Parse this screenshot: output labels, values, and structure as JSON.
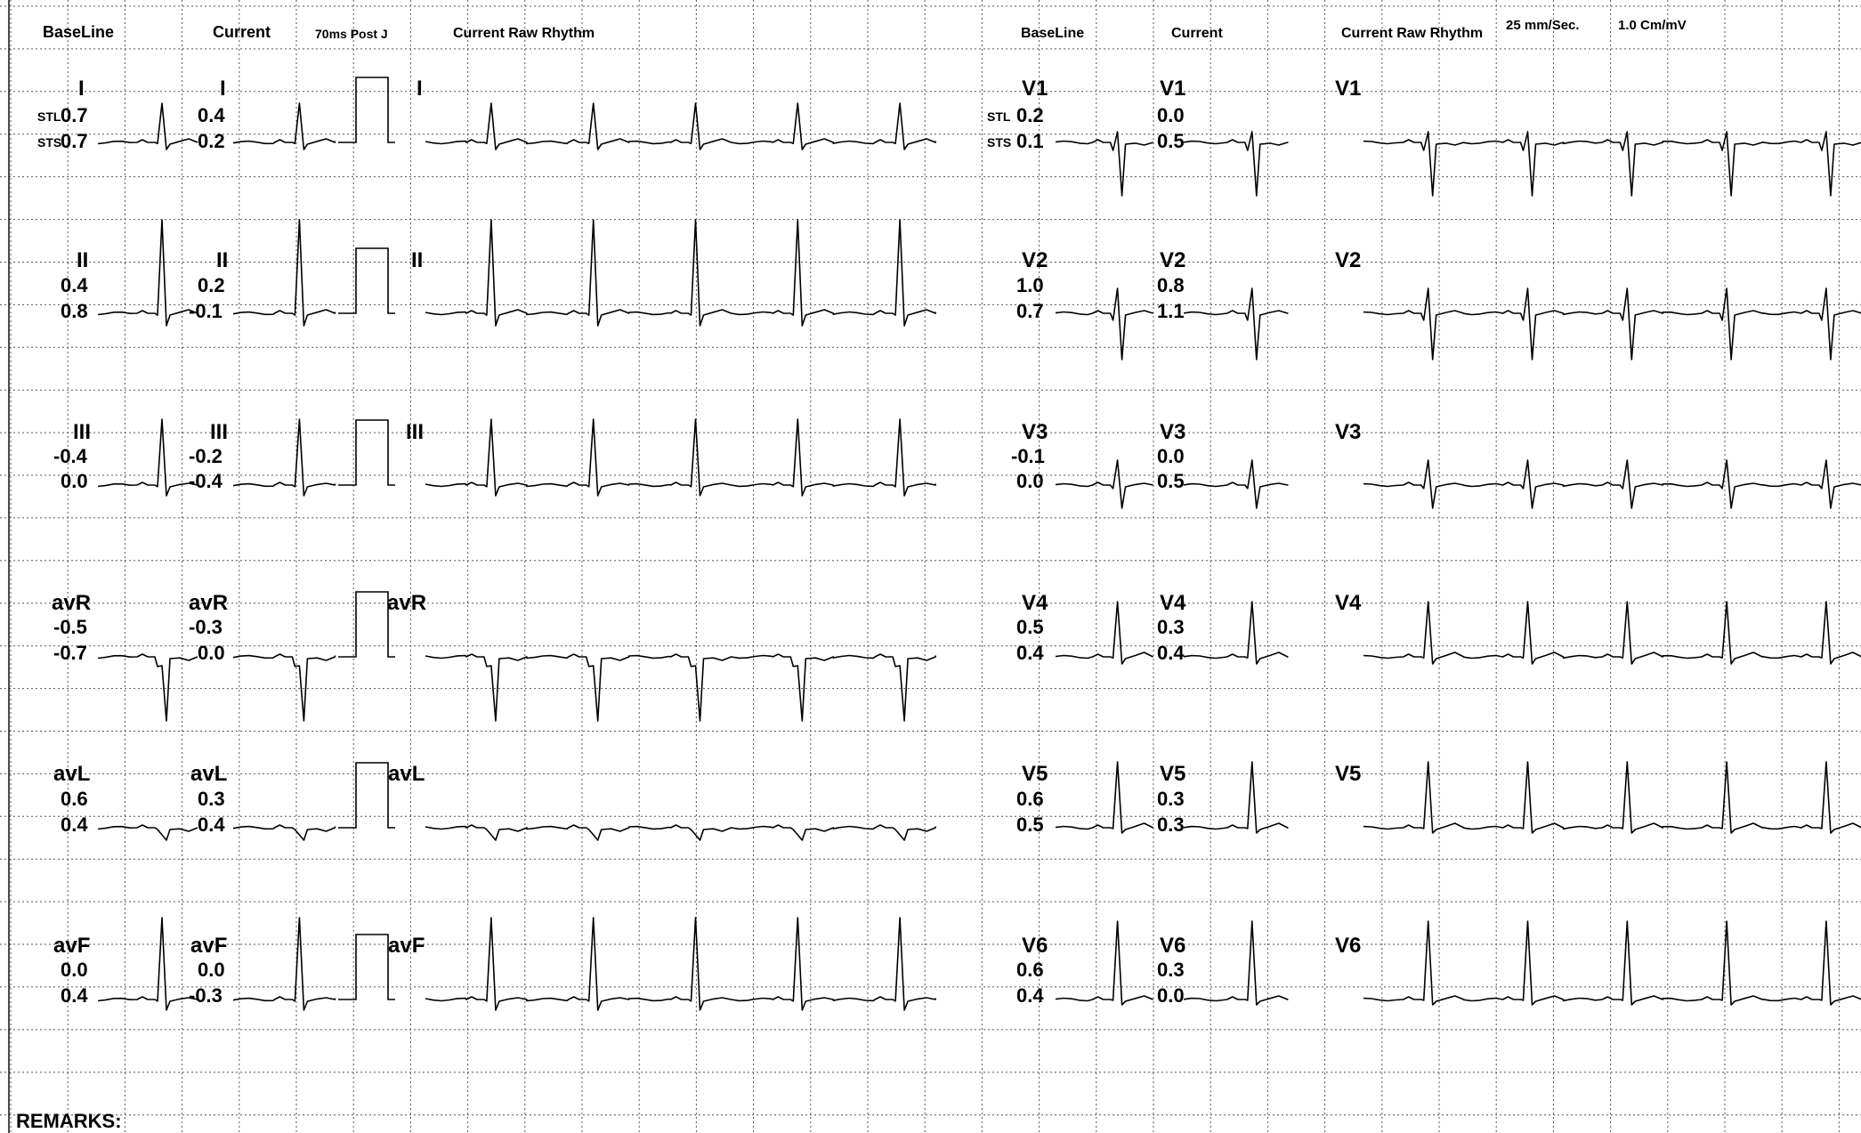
{
  "headers": {
    "left_baseline": "BaseLine",
    "left_current": "Current",
    "post_j": "70ms Post J",
    "left_rhythm": "Current Raw Rhythm",
    "right_baseline": "BaseLine",
    "right_current": "Current",
    "right_rhythm": "Current Raw Rhythm",
    "speed": "25 mm/Sec.",
    "gain": "1.0 Cm/mV"
  },
  "st_labels": {
    "stl": "STL",
    "sts": "STS"
  },
  "leads_left": [
    {
      "name": "I",
      "baseline_stl": "0.7",
      "baseline_sts": "0.7",
      "current_stl": "0.4",
      "current_sts": "0.2"
    },
    {
      "name": "II",
      "baseline_stl": "0.4",
      "baseline_sts": "0.8",
      "current_stl": "0.2",
      "current_sts": "-0.1"
    },
    {
      "name": "III",
      "baseline_stl": "-0.4",
      "baseline_sts": "0.0",
      "current_stl": "-0.2",
      "current_sts": "-0.4"
    },
    {
      "name": "avR",
      "baseline_stl": "-0.5",
      "baseline_sts": "-0.7",
      "current_stl": "-0.3",
      "current_sts": "0.0"
    },
    {
      "name": "avL",
      "baseline_stl": "0.6",
      "baseline_sts": "0.4",
      "current_stl": "0.3",
      "current_sts": "0.4"
    },
    {
      "name": "avF",
      "baseline_stl": "0.0",
      "baseline_sts": "0.4",
      "current_stl": "0.0",
      "current_sts": "-0.3"
    }
  ],
  "leads_right": [
    {
      "name": "V1",
      "baseline_stl": "0.2",
      "baseline_sts": "0.1",
      "current_stl": "0.0",
      "current_sts": "0.5"
    },
    {
      "name": "V2",
      "baseline_stl": "1.0",
      "baseline_sts": "0.7",
      "current_stl": "0.8",
      "current_sts": "1.1"
    },
    {
      "name": "V3",
      "baseline_stl": "-0.1",
      "baseline_sts": "0.0",
      "current_stl": "0.0",
      "current_sts": "0.5"
    },
    {
      "name": "V4",
      "baseline_stl": "0.5",
      "baseline_sts": "0.4",
      "current_stl": "0.3",
      "current_sts": "0.4"
    },
    {
      "name": "V5",
      "baseline_stl": "0.6",
      "baseline_sts": "0.5",
      "current_stl": "0.3",
      "current_sts": "0.3"
    },
    {
      "name": "V6",
      "baseline_stl": "0.6",
      "baseline_sts": "0.4",
      "current_stl": "0.3",
      "current_sts": "0.0"
    }
  ],
  "remarks_label": "REMARKS:",
  "colors": {
    "grid": "#555555",
    "trace": "#000000",
    "paper": "#ffffff"
  }
}
